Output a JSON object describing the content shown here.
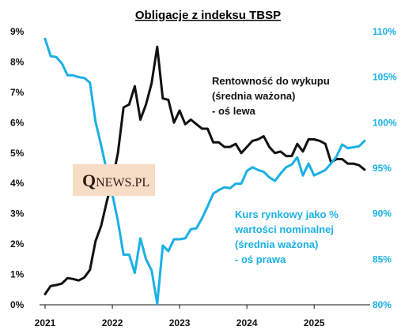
{
  "chart_data": {
    "type": "line",
    "title": "Obligacje z indeksu TBSP",
    "x_ticks": [
      "2021",
      "2022",
      "2023",
      "2024",
      "2025"
    ],
    "y_left": {
      "range": [
        0,
        9
      ],
      "ticks": [
        "0%",
        "1%",
        "2%",
        "3%",
        "4%",
        "5%",
        "6%",
        "7%",
        "8%",
        "9%"
      ]
    },
    "y_right": {
      "range": [
        80,
        110
      ],
      "ticks": [
        "80%",
        "85%",
        "90%",
        "95%",
        "100%",
        "105%",
        "110%"
      ]
    },
    "grid": false,
    "series": [
      {
        "name": "Rentowność do wykupu (średnia ważona) - oś lewa",
        "axis": "left",
        "color": "#111111",
        "points": [
          [
            "2021-01",
            0.35
          ],
          [
            "2021-02",
            0.62
          ],
          [
            "2021-03",
            0.65
          ],
          [
            "2021-04",
            0.7
          ],
          [
            "2021-05",
            0.88
          ],
          [
            "2021-06",
            0.85
          ],
          [
            "2021-07",
            0.8
          ],
          [
            "2021-08",
            0.9
          ],
          [
            "2021-09",
            1.15
          ],
          [
            "2021-10",
            2.1
          ],
          [
            "2021-11",
            2.6
          ],
          [
            "2021-12",
            3.4
          ],
          [
            "2022-01",
            4.1
          ],
          [
            "2022-02",
            5.0
          ],
          [
            "2022-03",
            6.5
          ],
          [
            "2022-04",
            6.6
          ],
          [
            "2022-05",
            7.2
          ],
          [
            "2022-06",
            6.1
          ],
          [
            "2022-07",
            6.6
          ],
          [
            "2022-08",
            7.3
          ],
          [
            "2022-09",
            8.5
          ],
          [
            "2022-10",
            6.8
          ],
          [
            "2022-11",
            6.75
          ],
          [
            "2022-12",
            6.0
          ],
          [
            "2023-01",
            6.4
          ],
          [
            "2023-02",
            5.95
          ],
          [
            "2023-03",
            6.1
          ],
          [
            "2023-04",
            5.95
          ],
          [
            "2023-05",
            5.8
          ],
          [
            "2023-06",
            5.8
          ],
          [
            "2023-07",
            5.35
          ],
          [
            "2023-08",
            5.35
          ],
          [
            "2023-09",
            5.2
          ],
          [
            "2023-10",
            5.2
          ],
          [
            "2023-11",
            5.3
          ],
          [
            "2023-12",
            5.0
          ],
          [
            "2024-01",
            5.2
          ],
          [
            "2024-02",
            5.4
          ],
          [
            "2024-03",
            5.45
          ],
          [
            "2024-04",
            5.55
          ],
          [
            "2024-05",
            5.2
          ],
          [
            "2024-06",
            5.0
          ],
          [
            "2024-07",
            5.05
          ],
          [
            "2024-08",
            4.9
          ],
          [
            "2024-09",
            4.9
          ],
          [
            "2024-10",
            5.3
          ],
          [
            "2024-11",
            5.05
          ],
          [
            "2024-12",
            5.45
          ],
          [
            "2025-01",
            5.45
          ],
          [
            "2025-02",
            5.4
          ],
          [
            "2025-03",
            5.3
          ],
          [
            "2025-04",
            4.7
          ],
          [
            "2025-05",
            4.8
          ],
          [
            "2025-06",
            4.8
          ],
          [
            "2025-07",
            4.65
          ],
          [
            "2025-08",
            4.65
          ],
          [
            "2025-09",
            4.6
          ],
          [
            "2025-10",
            4.45
          ]
        ]
      },
      {
        "name": "Kurs rynkowy jako % wartości nominalnej (średnia ważona) - oś prawa",
        "axis": "right",
        "color": "#1ab0e6",
        "points": [
          [
            "2021-01",
            109.2
          ],
          [
            "2021-02",
            107.3
          ],
          [
            "2021-03",
            107.2
          ],
          [
            "2021-04",
            106.5
          ],
          [
            "2021-05",
            105.2
          ],
          [
            "2021-06",
            105.2
          ],
          [
            "2021-07",
            105.0
          ],
          [
            "2021-08",
            104.9
          ],
          [
            "2021-09",
            104.4
          ],
          [
            "2021-10",
            100.1
          ],
          [
            "2021-11",
            97.5
          ],
          [
            "2021-12",
            94.7
          ],
          [
            "2022-01",
            92.1
          ],
          [
            "2022-02",
            89.2
          ],
          [
            "2022-03",
            85.5
          ],
          [
            "2022-04",
            85.5
          ],
          [
            "2022-05",
            83.5
          ],
          [
            "2022-06",
            87.3
          ],
          [
            "2022-07",
            85.0
          ],
          [
            "2022-08",
            83.8
          ],
          [
            "2022-09",
            80.1
          ],
          [
            "2022-10",
            86.5
          ],
          [
            "2022-11",
            85.9
          ],
          [
            "2022-12",
            87.2
          ],
          [
            "2023-01",
            87.2
          ],
          [
            "2023-02",
            87.3
          ],
          [
            "2023-03",
            88.3
          ],
          [
            "2023-04",
            88.4
          ],
          [
            "2023-05",
            89.5
          ],
          [
            "2023-06",
            90.8
          ],
          [
            "2023-07",
            92.2
          ],
          [
            "2023-08",
            92.6
          ],
          [
            "2023-09",
            92.9
          ],
          [
            "2023-10",
            92.8
          ],
          [
            "2023-11",
            93.3
          ],
          [
            "2023-12",
            93.3
          ],
          [
            "2024-01",
            94.7
          ],
          [
            "2024-02",
            95.1
          ],
          [
            "2024-03",
            94.8
          ],
          [
            "2024-04",
            94.6
          ],
          [
            "2024-05",
            94.0
          ],
          [
            "2024-06",
            93.6
          ],
          [
            "2024-07",
            94.4
          ],
          [
            "2024-08",
            95.1
          ],
          [
            "2024-09",
            95.4
          ],
          [
            "2024-10",
            96.2
          ],
          [
            "2024-11",
            94.2
          ],
          [
            "2024-12",
            95.5
          ],
          [
            "2025-01",
            94.2
          ],
          [
            "2025-02",
            94.5
          ],
          [
            "2025-03",
            94.8
          ],
          [
            "2025-04",
            95.5
          ],
          [
            "2025-05",
            96.3
          ],
          [
            "2025-06",
            97.6
          ],
          [
            "2025-07",
            97.2
          ],
          [
            "2025-08",
            97.3
          ],
          [
            "2025-09",
            97.4
          ],
          [
            "2025-10",
            98.0
          ]
        ]
      }
    ],
    "annotations": {
      "black": [
        "Rentowność do wykupu",
        "(średnia ważona)",
        "- oś lewa"
      ],
      "blue": [
        "Kurs rynkowy jako %",
        "wartości nominalnej",
        "(średnia ważona)",
        "- oś prawa"
      ]
    },
    "logo": {
      "q": "Q",
      "rest": "NEWS.PL"
    }
  }
}
